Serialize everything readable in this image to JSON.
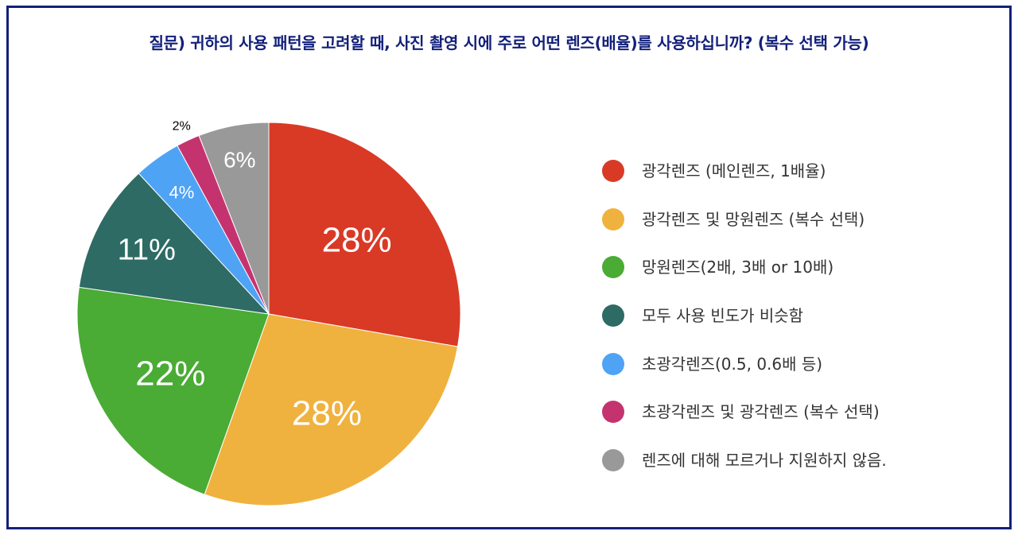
{
  "chart_data": {
    "type": "pie",
    "title": "질문) 귀하의 사용 패턴을 고려할 때, 사진 촬영 시에 주로 어떤 렌즈(배율)를 사용하십니까? (복수 선택 가능)",
    "legend_position": "right",
    "slices": [
      {
        "label": "광각렌즈 (메인렌즈, 1배율)",
        "value": 28,
        "display": "28%",
        "color": "#d93a26"
      },
      {
        "label": "광각렌즈 및 망원렌즈 (복수 선택)",
        "value": 28,
        "display": "28%",
        "color": "#f0b23e"
      },
      {
        "label": "망원렌즈(2배, 3배 or 10배)",
        "value": 22,
        "display": "22%",
        "color": "#4aab35"
      },
      {
        "label": "모두 사용 빈도가 비슷함",
        "value": 11,
        "display": "11%",
        "color": "#2d6b64"
      },
      {
        "label": "초광각렌즈(0.5, 0.6배 등)",
        "value": 4,
        "display": "4%",
        "color": "#4fa3f5"
      },
      {
        "label": "초광각렌즈 및 광각렌즈 (복수 선택)",
        "value": 2,
        "display": "2%",
        "color": "#c5336f"
      },
      {
        "label": "렌즈에 대해 모르거나 지원하지 않음.",
        "value": 6,
        "display": "6%",
        "color": "#999999"
      }
    ]
  }
}
